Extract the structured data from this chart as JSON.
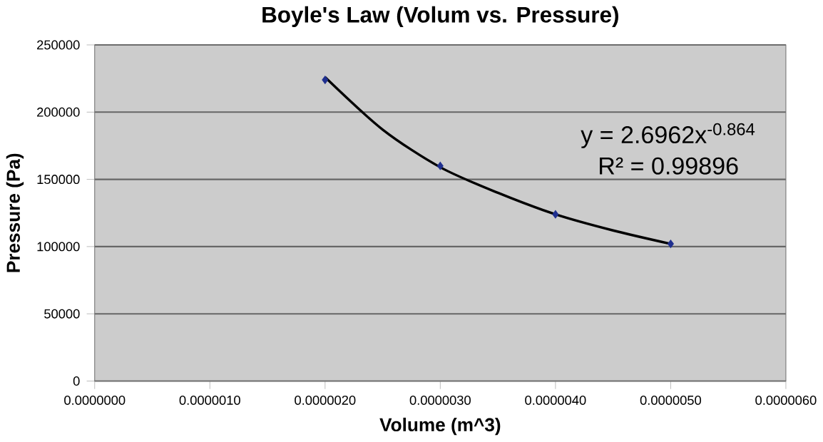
{
  "chart_data": {
    "type": "scatter",
    "title": "Boyle's Law (Volum vs. Pressure)",
    "xlabel": "Volume (m^3)",
    "ylabel": "Pressure (Pa)",
    "xlim": [
      0,
      6e-06
    ],
    "xticks": [
      {
        "value": 0,
        "label": "0.0000000"
      },
      {
        "value": 1e-06,
        "label": "0.0000010"
      },
      {
        "value": 2e-06,
        "label": "0.0000020"
      },
      {
        "value": 3e-06,
        "label": "0.0000030"
      },
      {
        "value": 4e-06,
        "label": "0.0000040"
      },
      {
        "value": 5e-06,
        "label": "0.0000050"
      },
      {
        "value": 6e-06,
        "label": "0.0000060"
      }
    ],
    "ylim": [
      0,
      250000
    ],
    "yticks": [
      0,
      50000,
      100000,
      150000,
      200000,
      250000
    ],
    "grid": "y",
    "marker": "diamond",
    "series": [
      {
        "color": "#1f2f8f",
        "x": [
          2e-06,
          3e-06,
          4e-06,
          5e-06
        ],
        "values": [
          224000,
          160000,
          124000,
          102000
        ]
      },
      {
        "type": "line",
        "color": "#000000",
        "marker": "none",
        "x": [
          2e-06,
          2.5e-06,
          3e-06,
          3.5e-06,
          4e-06,
          4.5e-06,
          5e-06
        ],
        "values": [
          226000,
          187000,
          159000,
          140000,
          124000,
          112000,
          102000
        ]
      }
    ],
    "annotations": [
      "y = 2.6962x$^{-0.864}$",
      "R² = 0.99896"
    ]
  }
}
